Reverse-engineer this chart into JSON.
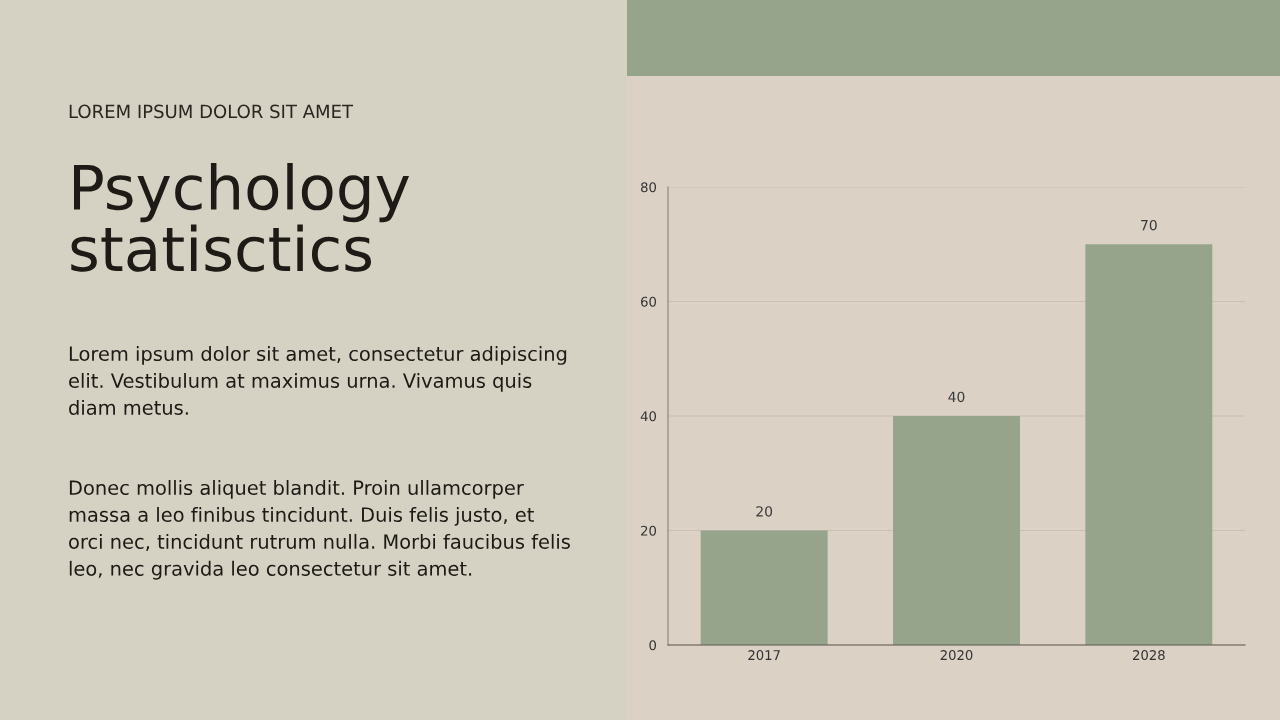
{
  "chart_data": {
    "type": "bar",
    "title": "Psychology statisctics",
    "subtitle": "LOREM IPSUM DOLOR SIT AMET",
    "annotations": [
      "Lorem ipsum dolor sit amet, consectetur adipiscing elit. Vestibulum at maximus urna. Vivamus quis diam metus.",
      "Donec mollis aliquet blandit. Proin ullamcorper massa a leo finibus tincidunt. Duis felis justo, et orci nec, tincidunt rutrum nulla. Morbi faucibus felis leo, nec gravida leo consectetur sit amet."
    ],
    "categories": [
      "2017",
      "2020",
      "2028"
    ],
    "values": [
      20,
      40,
      70
    ],
    "color": "#96a48b",
    "ylim": [
      0,
      80
    ],
    "yticks": [
      0,
      20,
      40,
      60,
      80
    ],
    "grid": "y",
    "data_labels": true,
    "legend": false
  }
}
